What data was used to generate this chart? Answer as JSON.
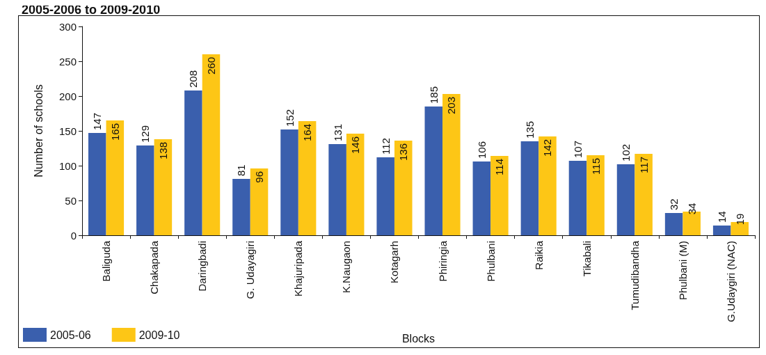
{
  "chart_data": {
    "type": "bar",
    "title": "2005-2006 to 2009-2010",
    "xlabel": "Blocks",
    "ylabel": "Number of schools",
    "categories": [
      "Baliguda",
      "Chakapada",
      "Daringbadi",
      "G. Udayagiri",
      "Khajuripada",
      "K.Naugaon",
      "Kotagarh",
      "Phiringia",
      "Phulbani",
      "Raikia",
      "Tikabali",
      "Tumudibandha",
      "Phulbani (M)",
      "G.Udaygiri (NAC)"
    ],
    "series": [
      {
        "name": "2005-06",
        "color": "#3a5fad",
        "values": [
          147,
          129,
          208,
          81,
          152,
          131,
          112,
          185,
          106,
          135,
          107,
          102,
          32,
          14
        ]
      },
      {
        "name": "2009-10",
        "color": "#fdc616",
        "values": [
          165,
          138,
          260,
          96,
          164,
          146,
          136,
          203,
          114,
          142,
          115,
          117,
          34,
          19
        ]
      }
    ],
    "ylim": [
      0,
      300
    ],
    "yticks": [
      0,
      50,
      100,
      150,
      200,
      250,
      300
    ],
    "data_labels": true,
    "legend": "bottom left",
    "grid": false
  }
}
